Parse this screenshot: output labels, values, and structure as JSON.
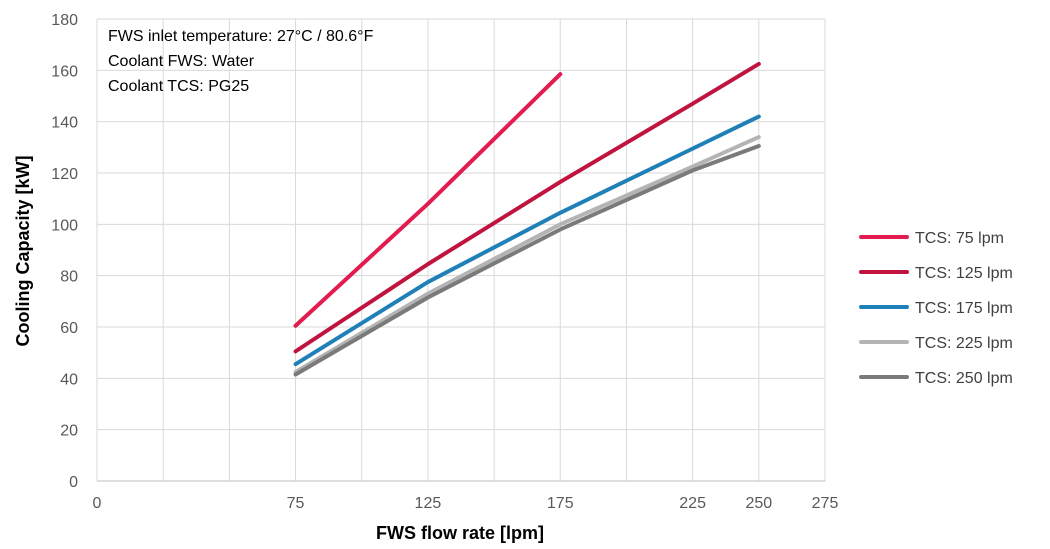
{
  "chart_data": {
    "type": "line",
    "title": "",
    "xlabel": "FWS flow rate [lpm]",
    "ylabel": "Cooling Capacity [kW]",
    "xlim": [
      0,
      275
    ],
    "ylim": [
      0,
      180
    ],
    "x_ticks": [
      0,
      75,
      125,
      175,
      225,
      250,
      275
    ],
    "y_ticks": [
      0,
      20,
      40,
      60,
      80,
      100,
      120,
      140,
      160,
      180
    ],
    "grid": true,
    "legend_position": "right",
    "annotations": [
      "FWS inlet temperature: 27°C / 80.6°F",
      "Coolant FWS: Water",
      "Coolant TCS: PG25"
    ],
    "series": [
      {
        "name": "TCS: 75 lpm",
        "color": "#E31C50",
        "x": [
          75,
          125,
          175
        ],
        "y": [
          60.5,
          108,
          158.5
        ]
      },
      {
        "name": "TCS: 125 lpm",
        "color": "#C0143F",
        "x": [
          75,
          125,
          175,
          225,
          250
        ],
        "y": [
          50.5,
          84.5,
          116.5,
          147,
          162.5
        ]
      },
      {
        "name": "TCS: 175 lpm",
        "color": "#1F80B8",
        "x": [
          75,
          125,
          175,
          225,
          250
        ],
        "y": [
          45.5,
          77.5,
          104.5,
          129.5,
          142
        ]
      },
      {
        "name": "TCS: 225 lpm",
        "color": "#B4B4B4",
        "x": [
          75,
          125,
          175,
          225,
          250
        ],
        "y": [
          42.5,
          73,
          100,
          122.5,
          134
        ]
      },
      {
        "name": "TCS: 250 lpm",
        "color": "#7A7A7A",
        "x": [
          75,
          125,
          175,
          225,
          250
        ],
        "y": [
          41.5,
          71.5,
          98,
          121,
          130.5
        ]
      }
    ]
  }
}
